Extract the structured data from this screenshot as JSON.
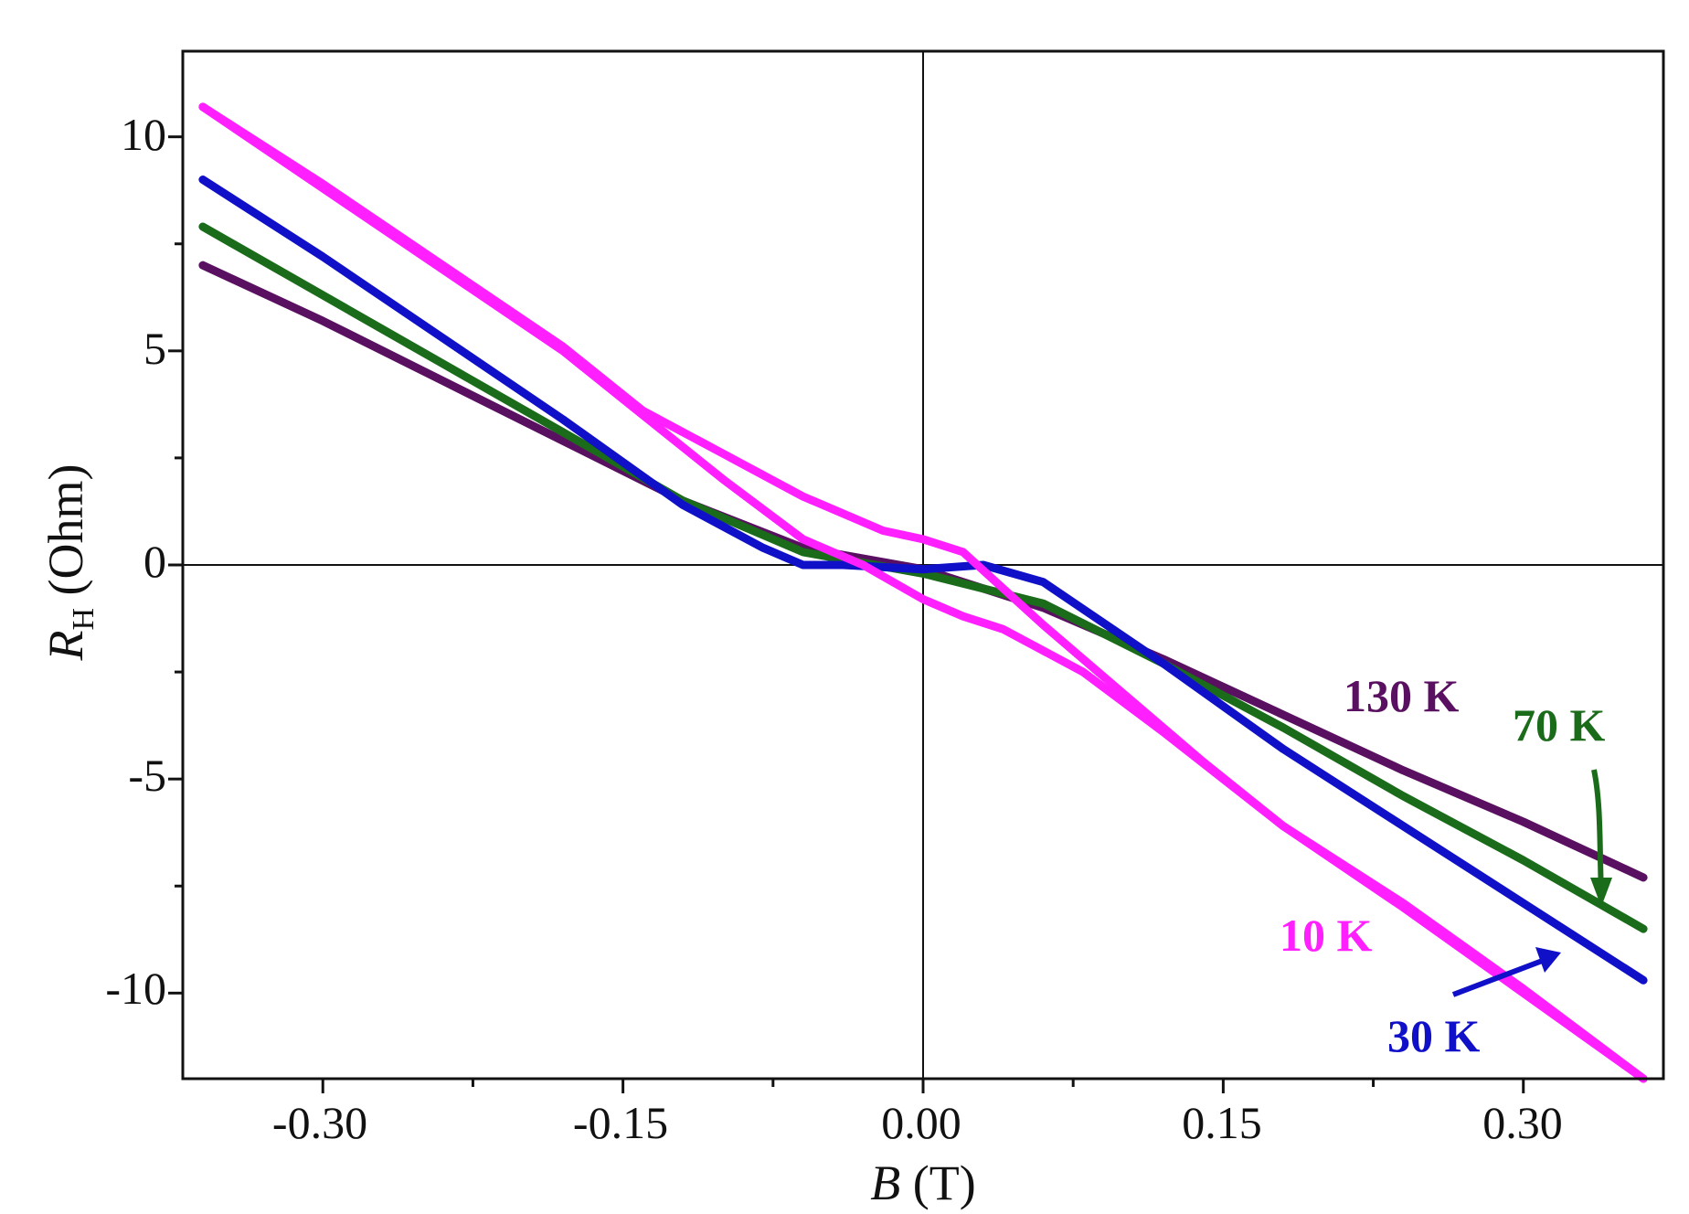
{
  "chart_data": {
    "type": "line",
    "title": "",
    "xlabel_var": "B",
    "xlabel_unit": " (T)",
    "ylabel_var": "R",
    "ylabel_sub": "H",
    "ylabel_unit": " (Ohm)",
    "xlim": [
      -0.37,
      0.37
    ],
    "ylim": [
      -12,
      12
    ],
    "xticks": [
      -0.3,
      -0.15,
      0.0,
      0.15,
      0.3
    ],
    "xtick_labels": [
      "-0.30",
      "-0.15",
      "0.00",
      "0.15",
      "0.30"
    ],
    "yticks": [
      -10,
      -5,
      0,
      5,
      10
    ],
    "ytick_labels": [
      "-10",
      "-5",
      "0",
      "5",
      "10"
    ],
    "grid": false,
    "zero_lines": true,
    "series": [
      {
        "name": "130 K",
        "color": "#5a1060",
        "x": [
          -0.36,
          -0.3,
          -0.24,
          -0.18,
          -0.12,
          -0.06,
          0.0,
          0.06,
          0.12,
          0.18,
          0.24,
          0.3,
          0.36
        ],
        "y": [
          7.0,
          5.7,
          4.3,
          2.9,
          1.5,
          0.4,
          -0.1,
          -1.0,
          -2.2,
          -3.5,
          -4.8,
          -6.0,
          -7.3
        ]
      },
      {
        "name": "70 K",
        "color": "#1a6b1a",
        "x": [
          -0.36,
          -0.3,
          -0.24,
          -0.18,
          -0.12,
          -0.06,
          0.0,
          0.06,
          0.12,
          0.18,
          0.24,
          0.3,
          0.36
        ],
        "y": [
          7.9,
          6.3,
          4.7,
          3.1,
          1.5,
          0.3,
          -0.2,
          -0.9,
          -2.3,
          -3.8,
          -5.4,
          -6.9,
          -8.5
        ]
      },
      {
        "name": "30 K",
        "color": "#1010c8",
        "x": [
          -0.36,
          -0.3,
          -0.24,
          -0.18,
          -0.12,
          -0.08,
          -0.06,
          -0.04,
          0.0,
          0.03,
          0.06,
          0.12,
          0.18,
          0.24,
          0.3,
          0.36
        ],
        "y": [
          9.0,
          7.2,
          5.3,
          3.4,
          1.4,
          0.4,
          0.0,
          0.0,
          -0.1,
          0.0,
          -0.4,
          -2.3,
          -4.3,
          -6.1,
          -7.9,
          -9.7
        ]
      },
      {
        "name": "10 K",
        "color": "#ff1fff",
        "x": [
          -0.36,
          -0.3,
          -0.24,
          -0.18,
          -0.14,
          -0.1,
          -0.06,
          -0.02,
          0.0,
          0.02,
          0.06,
          0.1,
          0.14,
          0.18,
          0.24,
          0.3,
          0.36
        ],
        "y": [
          10.7,
          8.9,
          7.0,
          5.1,
          3.6,
          2.6,
          1.6,
          0.8,
          0.6,
          0.3,
          -1.4,
          -3.0,
          -4.6,
          -6.1,
          -7.9,
          -9.9,
          -12.0
        ]
      },
      {
        "name": "10 K",
        "color": "#ff1fff",
        "x": [
          -0.36,
          -0.3,
          -0.24,
          -0.18,
          -0.14,
          -0.1,
          -0.06,
          -0.03,
          0.0,
          0.02,
          0.04,
          0.08,
          0.12,
          0.18,
          0.24,
          0.3,
          0.36
        ],
        "y": [
          10.7,
          8.8,
          6.9,
          5.0,
          3.5,
          2.0,
          0.6,
          0.0,
          -0.8,
          -1.2,
          -1.5,
          -2.5,
          -3.9,
          -6.1,
          -8.0,
          -10.0,
          -12.0
        ]
      }
    ],
    "annotations": [
      {
        "text": "130 K",
        "color": "#5a1060"
      },
      {
        "text": "70 K",
        "color": "#1a6b1a"
      },
      {
        "text": "10 K",
        "color": "#ff1fff"
      },
      {
        "text": "30 K",
        "color": "#1010c8"
      }
    ]
  }
}
